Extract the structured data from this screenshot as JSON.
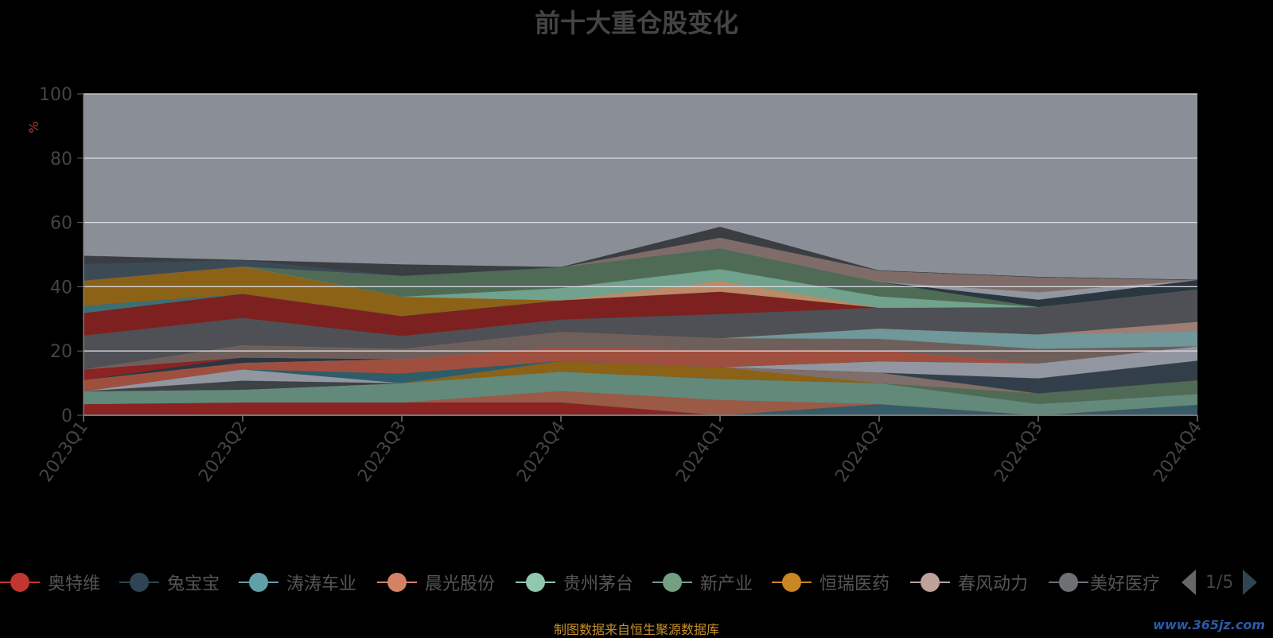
{
  "title": "前十大重仓股变化",
  "source_note": "制图数据来自恒生聚源数据库",
  "watermark": "www.365jz.com",
  "legend": {
    "items": [
      {
        "name": "奥特维",
        "color": "#c23531"
      },
      {
        "name": "兔宝宝",
        "color": "#2f4554"
      },
      {
        "name": "涛涛车业",
        "color": "#61a0a8"
      },
      {
        "name": "晨光股份",
        "color": "#d48265"
      },
      {
        "name": "贵州茅台",
        "color": "#91c7ae"
      },
      {
        "name": "新产业",
        "color": "#749f83"
      },
      {
        "name": "恒瑞医药",
        "color": "#ca8622"
      },
      {
        "name": "春风动力",
        "color": "#bda29a"
      },
      {
        "name": "美好医疗",
        "color": "#6e7074"
      }
    ],
    "page": "1/5"
  },
  "chart_data": {
    "type": "area",
    "stacked": true,
    "title": "前十大重仓股变化",
    "ylabel": "%",
    "ylim": [
      0,
      100
    ],
    "yticks": [
      0,
      20,
      40,
      60,
      80,
      100
    ],
    "categories": [
      "2023Q1",
      "2023Q2",
      "2023Q3",
      "2023Q4",
      "2024Q1",
      "2024Q2",
      "2024Q3",
      "2024Q4"
    ],
    "background_color": "#8a8f97",
    "series": [
      {
        "color": "#8b2323",
        "values": [
          3.5,
          4,
          4,
          4,
          0,
          0,
          0,
          0
        ]
      },
      {
        "color": "#365b69",
        "values": [
          0,
          0,
          0,
          0,
          0,
          3.5,
          0,
          3.3
        ]
      },
      {
        "color": "#9b5a45",
        "values": [
          0,
          0,
          0,
          3.6,
          4.8,
          0,
          0,
          0
        ]
      },
      {
        "color": "#63897a",
        "values": [
          4,
          4,
          6,
          6,
          6.5,
          6.5,
          3.5,
          3.3
        ]
      },
      {
        "color": "#4f6b56",
        "values": [
          0,
          0,
          0,
          0,
          0,
          0,
          3.3,
          4.3
        ]
      },
      {
        "color": "#8c6217",
        "values": [
          0,
          0,
          0,
          3.3,
          3.7,
          0,
          0,
          0
        ]
      },
      {
        "color": "#7f6e69",
        "values": [
          0,
          0,
          0,
          0,
          0,
          3.3,
          0,
          0
        ]
      },
      {
        "color": "#323f4a",
        "values": [
          0,
          0,
          0,
          0,
          0,
          0,
          4.7,
          6.1
        ]
      },
      {
        "color": "#3d4247",
        "values": [
          0,
          2.8,
          0,
          0,
          0,
          0,
          0,
          0
        ]
      },
      {
        "color": "#9296a0",
        "values": [
          0,
          3.5,
          0,
          0,
          0,
          3.5,
          4.7,
          4.5
        ]
      },
      {
        "color": "#2d5d68",
        "values": [
          0,
          0,
          3,
          0,
          0,
          0,
          0,
          0
        ]
      },
      {
        "color": "#a04f3e",
        "values": [
          3.5,
          2,
          4.5,
          4.5,
          5.5,
          3.5,
          0,
          0
        ]
      },
      {
        "color": "#9296a0",
        "values": [
          0,
          0,
          0,
          0,
          0,
          0,
          0,
          0
        ]
      },
      {
        "color": "#8f7d78",
        "values": [
          0,
          0,
          0,
          0,
          0,
          0,
          0,
          0
        ]
      },
      {
        "color": "#2b3740",
        "values": [
          0,
          1.7,
          0,
          0,
          0,
          0,
          0,
          0
        ]
      },
      {
        "color": "#8b2323",
        "values": [
          3.3,
          0,
          0,
          0,
          0,
          0,
          0,
          0
        ]
      },
      {
        "color": "#7f8288",
        "values": [
          0,
          0,
          0,
          0,
          0,
          0,
          0,
          0
        ]
      },
      {
        "color": "#6f5f5b",
        "values": [
          0,
          3.8,
          3.2,
          4.6,
          3.5,
          3.5,
          4.5,
          0
        ]
      },
      {
        "color": "#70979a",
        "values": [
          0,
          0,
          0,
          0,
          0,
          3.2,
          4.5,
          4.6
        ]
      },
      {
        "color": "#bb7a5c",
        "values": [
          0,
          0,
          0,
          0,
          0,
          0,
          0,
          0
        ]
      },
      {
        "color": "#9d7e74",
        "values": [
          0,
          0,
          0,
          0,
          0,
          0,
          0,
          3
        ]
      },
      {
        "color": "#c56c2f",
        "values": [
          0,
          0,
          0,
          0,
          0,
          0,
          0,
          0
        ]
      },
      {
        "color": "#5a5e63",
        "values": [
          0,
          0,
          0,
          0,
          0,
          0,
          0,
          0
        ]
      },
      {
        "color": "#4e5055",
        "values": [
          10.5,
          8.5,
          4,
          3.8,
          7.5,
          6.5,
          8.5,
          10
        ]
      },
      {
        "color": "#7c2020",
        "values": [
          7,
          7.5,
          6.2,
          6,
          7,
          0,
          0,
          0
        ]
      },
      {
        "color": "#3d6e72",
        "values": [
          2.3,
          0,
          0,
          0,
          0,
          0,
          0,
          0
        ]
      },
      {
        "color": "#8c6217",
        "values": [
          7.8,
          8.5,
          6,
          0,
          0,
          0,
          0,
          0
        ]
      },
      {
        "color": "#bb8a68",
        "values": [
          0,
          0,
          0,
          0,
          3.3,
          0,
          0,
          0
        ]
      },
      {
        "color": "#70a28e",
        "values": [
          0,
          0,
          0,
          3.8,
          3.7,
          3.5,
          0,
          0
        ]
      },
      {
        "color": "#4f6b56",
        "values": [
          0,
          0,
          6.5,
          6.5,
          6.5,
          4.5,
          0,
          0
        ]
      },
      {
        "color": "#2b3740",
        "values": [
          0,
          0,
          0,
          0,
          0,
          0,
          2.3,
          3
        ]
      },
      {
        "color": "#9296a0",
        "values": [
          0,
          0,
          0,
          0,
          0,
          0,
          2.3,
          0
        ]
      },
      {
        "color": "#7f6c68",
        "values": [
          0,
          0,
          0,
          0,
          3.3,
          3.5,
          4.7,
          0
        ]
      },
      {
        "color": "#3b4a54",
        "values": [
          5.2,
          2,
          0,
          0,
          0,
          0,
          0,
          0
        ]
      },
      {
        "color": "#3a3e42",
        "values": [
          2.5,
          0,
          3.5,
          0,
          3.3,
          0,
          0,
          0
        ]
      }
    ]
  }
}
